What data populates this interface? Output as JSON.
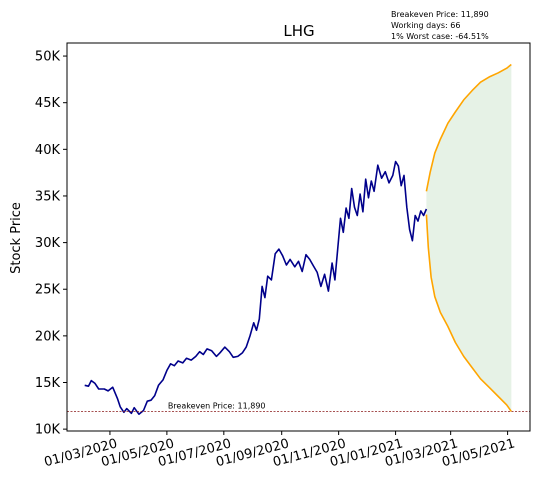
{
  "chart_data": {
    "type": "line",
    "title": "LHG",
    "ylabel": "Stock Price",
    "xlabel": "",
    "ylim": [
      9800,
      51400
    ],
    "xlim": [
      "2020-01-15",
      "2021-05-25"
    ],
    "grid": false,
    "y_ticks": [
      10000,
      15000,
      20000,
      25000,
      30000,
      35000,
      40000,
      45000,
      50000
    ],
    "y_tick_labels": [
      "10K",
      "15K",
      "20K",
      "25K",
      "30K",
      "35K",
      "40K",
      "45K",
      "50K"
    ],
    "x_ticks": [
      "2020-03-01",
      "2020-05-01",
      "2020-07-01",
      "2020-09-01",
      "2020-11-01",
      "2021-01-01",
      "2021-03-01",
      "2021-05-01"
    ],
    "x_tick_labels": [
      "01/03/2020",
      "01/05/2020",
      "01/07/2020",
      "01/09/2020",
      "01/11/2020",
      "01/01/2021",
      "01/03/2021",
      "01/05/2021"
    ],
    "info_box": [
      "Breakeven Price: 11,890",
      "Working days: 66",
      "1% Worst case: -64.51%"
    ],
    "breakeven": {
      "value": 11890,
      "label": "Breakeven Price: 11,890",
      "color": "#8b1a1a"
    },
    "series": [
      {
        "role": "history",
        "color": "#00008b",
        "points": [
          [
            "2020-02-03",
            14700
          ],
          [
            "2020-02-07",
            14600
          ],
          [
            "2020-02-10",
            15200
          ],
          [
            "2020-02-14",
            14900
          ],
          [
            "2020-02-18",
            14300
          ],
          [
            "2020-02-24",
            14300
          ],
          [
            "2020-02-28",
            14100
          ],
          [
            "2020-03-04",
            14500
          ],
          [
            "2020-03-09",
            13300
          ],
          [
            "2020-03-12",
            12400
          ],
          [
            "2020-03-16",
            11800
          ],
          [
            "2020-03-19",
            12200
          ],
          [
            "2020-03-24",
            11700
          ],
          [
            "2020-03-27",
            12300
          ],
          [
            "2020-04-01",
            11600
          ],
          [
            "2020-04-06",
            12000
          ],
          [
            "2020-04-10",
            13000
          ],
          [
            "2020-04-14",
            13100
          ],
          [
            "2020-04-18",
            13600
          ],
          [
            "2020-04-22",
            14700
          ],
          [
            "2020-04-27",
            15300
          ],
          [
            "2020-05-01",
            16300
          ],
          [
            "2020-05-05",
            17000
          ],
          [
            "2020-05-09",
            16800
          ],
          [
            "2020-05-13",
            17300
          ],
          [
            "2020-05-18",
            17100
          ],
          [
            "2020-05-22",
            17600
          ],
          [
            "2020-05-27",
            17400
          ],
          [
            "2020-06-01",
            17800
          ],
          [
            "2020-06-05",
            18300
          ],
          [
            "2020-06-09",
            18000
          ],
          [
            "2020-06-13",
            18600
          ],
          [
            "2020-06-18",
            18400
          ],
          [
            "2020-06-23",
            17800
          ],
          [
            "2020-06-27",
            18200
          ],
          [
            "2020-07-02",
            18800
          ],
          [
            "2020-07-07",
            18300
          ],
          [
            "2020-07-11",
            17700
          ],
          [
            "2020-07-16",
            17800
          ],
          [
            "2020-07-21",
            18200
          ],
          [
            "2020-07-25",
            18800
          ],
          [
            "2020-07-29",
            20000
          ],
          [
            "2020-08-02",
            21400
          ],
          [
            "2020-08-05",
            20600
          ],
          [
            "2020-08-08",
            21800
          ],
          [
            "2020-08-11",
            25300
          ],
          [
            "2020-08-14",
            24100
          ],
          [
            "2020-08-17",
            26400
          ],
          [
            "2020-08-21",
            26000
          ],
          [
            "2020-08-25",
            28800
          ],
          [
            "2020-08-29",
            29300
          ],
          [
            "2020-09-02",
            28600
          ],
          [
            "2020-09-06",
            27600
          ],
          [
            "2020-09-10",
            28200
          ],
          [
            "2020-09-15",
            27400
          ],
          [
            "2020-09-19",
            28000
          ],
          [
            "2020-09-23",
            26900
          ],
          [
            "2020-09-27",
            28700
          ],
          [
            "2020-10-01",
            28200
          ],
          [
            "2020-10-05",
            27500
          ],
          [
            "2020-10-09",
            26800
          ],
          [
            "2020-10-13",
            25300
          ],
          [
            "2020-10-17",
            26600
          ],
          [
            "2020-10-21",
            24800
          ],
          [
            "2020-10-25",
            27800
          ],
          [
            "2020-10-28",
            26000
          ],
          [
            "2020-10-31",
            29300
          ],
          [
            "2020-11-03",
            32600
          ],
          [
            "2020-11-06",
            31100
          ],
          [
            "2020-11-09",
            33700
          ],
          [
            "2020-11-12",
            32600
          ],
          [
            "2020-11-15",
            35800
          ],
          [
            "2020-11-18",
            33800
          ],
          [
            "2020-11-21",
            32900
          ],
          [
            "2020-11-24",
            35200
          ],
          [
            "2020-11-27",
            33300
          ],
          [
            "2020-11-30",
            36800
          ],
          [
            "2020-12-03",
            34800
          ],
          [
            "2020-12-06",
            36600
          ],
          [
            "2020-12-09",
            35500
          ],
          [
            "2020-12-13",
            38300
          ],
          [
            "2020-12-17",
            36900
          ],
          [
            "2020-12-21",
            37600
          ],
          [
            "2020-12-25",
            36400
          ],
          [
            "2020-12-29",
            37200
          ],
          [
            "2021-01-01",
            38700
          ],
          [
            "2021-01-04",
            38200
          ],
          [
            "2021-01-07",
            36100
          ],
          [
            "2021-01-10",
            37200
          ],
          [
            "2021-01-13",
            33800
          ],
          [
            "2021-01-16",
            31400
          ],
          [
            "2021-01-19",
            30200
          ],
          [
            "2021-01-22",
            32900
          ],
          [
            "2021-01-25",
            32300
          ],
          [
            "2021-01-28",
            33400
          ],
          [
            "2021-01-31",
            32900
          ],
          [
            "2021-02-03",
            33600
          ]
        ]
      },
      {
        "role": "forecast-upper",
        "color": "#ffa500",
        "points": [
          [
            "2021-02-03",
            35500
          ],
          [
            "2021-02-07",
            37500
          ],
          [
            "2021-02-12",
            39600
          ],
          [
            "2021-02-18",
            41100
          ],
          [
            "2021-02-26",
            42800
          ],
          [
            "2021-03-06",
            44000
          ],
          [
            "2021-03-15",
            45300
          ],
          [
            "2021-03-24",
            46300
          ],
          [
            "2021-04-02",
            47200
          ],
          [
            "2021-04-12",
            47800
          ],
          [
            "2021-04-21",
            48200
          ],
          [
            "2021-04-30",
            48700
          ],
          [
            "2021-05-05",
            49100
          ]
        ]
      },
      {
        "role": "forecast-lower",
        "color": "#ffa500",
        "points": [
          [
            "2021-02-03",
            33000
          ],
          [
            "2021-02-05",
            29500
          ],
          [
            "2021-02-08",
            26300
          ],
          [
            "2021-02-12",
            24200
          ],
          [
            "2021-02-18",
            22500
          ],
          [
            "2021-02-26",
            21000
          ],
          [
            "2021-03-06",
            19300
          ],
          [
            "2021-03-15",
            17800
          ],
          [
            "2021-03-24",
            16600
          ],
          [
            "2021-04-02",
            15400
          ],
          [
            "2021-04-12",
            14400
          ],
          [
            "2021-04-21",
            13500
          ],
          [
            "2021-04-30",
            12600
          ],
          [
            "2021-05-05",
            11900
          ]
        ]
      }
    ],
    "band_fill": "#e6f2e6"
  }
}
